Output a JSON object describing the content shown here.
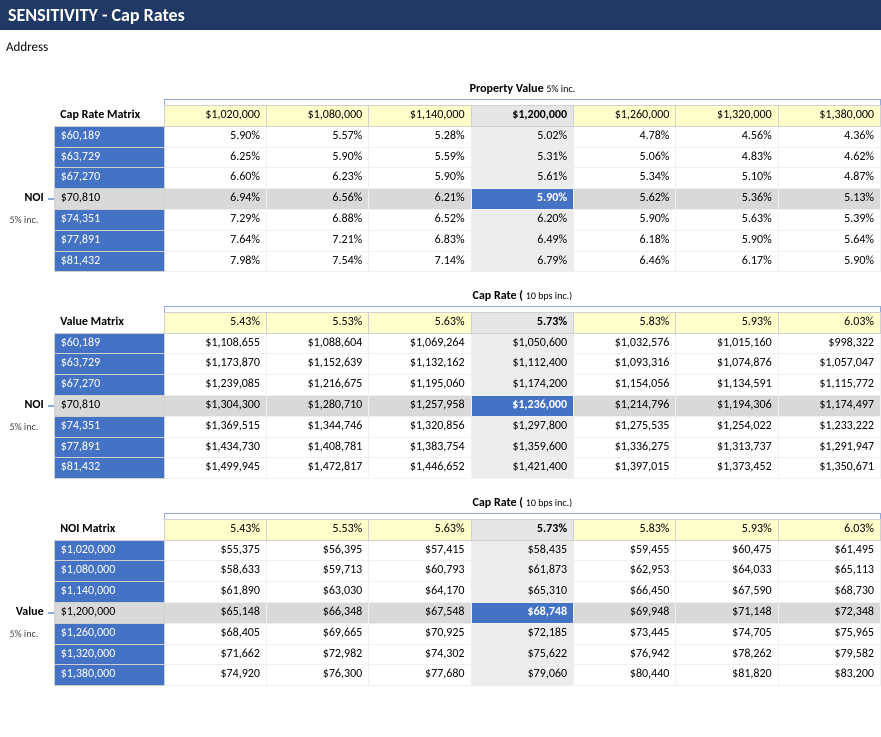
{
  "title": "SENSITIVITY - Cap Rates",
  "address_label": "Address",
  "colors": {
    "title_bg": "#1f3864",
    "row_head_bg": "#4472c4",
    "col_head_bg": "#ffffcc",
    "highlight_gray": "#d9d9d9",
    "highlight_col_gray": "#ececec",
    "cross_bg": "#4472c4",
    "bracket": "#8faadc"
  },
  "matrix1": {
    "section_title_bold": "Property Value",
    "section_title_note": "5% inc.",
    "matrix_label": "Cap Rate Matrix",
    "side_label": "NOI",
    "side_sub": "5% inc.",
    "col_headers": [
      "$1,020,000",
      "$1,080,000",
      "$1,140,000",
      "$1,200,000",
      "$1,260,000",
      "$1,320,000",
      "$1,380,000"
    ],
    "row_headers": [
      "$60,189",
      "$63,729",
      "$67,270",
      "$70,810",
      "$74,351",
      "$77,891",
      "$81,432"
    ],
    "center_col_index": 3,
    "center_row_index": 3,
    "cells": [
      [
        "5.90%",
        "5.57%",
        "5.28%",
        "5.02%",
        "4.78%",
        "4.56%",
        "4.36%"
      ],
      [
        "6.25%",
        "5.90%",
        "5.59%",
        "5.31%",
        "5.06%",
        "4.83%",
        "4.62%"
      ],
      [
        "6.60%",
        "6.23%",
        "5.90%",
        "5.61%",
        "5.34%",
        "5.10%",
        "4.87%"
      ],
      [
        "6.94%",
        "6.56%",
        "6.21%",
        "5.90%",
        "5.62%",
        "5.36%",
        "5.13%"
      ],
      [
        "7.29%",
        "6.88%",
        "6.52%",
        "6.20%",
        "5.90%",
        "5.63%",
        "5.39%"
      ],
      [
        "7.64%",
        "7.21%",
        "6.83%",
        "6.49%",
        "6.18%",
        "5.90%",
        "5.64%"
      ],
      [
        "7.98%",
        "7.54%",
        "7.14%",
        "6.79%",
        "6.46%",
        "6.17%",
        "5.90%"
      ]
    ]
  },
  "matrix2": {
    "section_title_bold": "Cap Rate (",
    "section_title_note": "10 bps inc.)",
    "matrix_label": "Value Matrix",
    "side_label": "NOI",
    "side_sub": "5% inc.",
    "col_headers": [
      "5.43%",
      "5.53%",
      "5.63%",
      "5.73%",
      "5.83%",
      "5.93%",
      "6.03%"
    ],
    "row_headers": [
      "$60,189",
      "$63,729",
      "$67,270",
      "$70,810",
      "$74,351",
      "$77,891",
      "$81,432"
    ],
    "center_col_index": 3,
    "center_row_index": 3,
    "cells": [
      [
        "$1,108,655",
        "$1,088,604",
        "$1,069,264",
        "$1,050,600",
        "$1,032,576",
        "$1,015,160",
        "$998,322"
      ],
      [
        "$1,173,870",
        "$1,152,639",
        "$1,132,162",
        "$1,112,400",
        "$1,093,316",
        "$1,074,876",
        "$1,057,047"
      ],
      [
        "$1,239,085",
        "$1,216,675",
        "$1,195,060",
        "$1,174,200",
        "$1,154,056",
        "$1,134,591",
        "$1,115,772"
      ],
      [
        "$1,304,300",
        "$1,280,710",
        "$1,257,958",
        "$1,236,000",
        "$1,214,796",
        "$1,194,306",
        "$1,174,497"
      ],
      [
        "$1,369,515",
        "$1,344,746",
        "$1,320,856",
        "$1,297,800",
        "$1,275,535",
        "$1,254,022",
        "$1,233,222"
      ],
      [
        "$1,434,730",
        "$1,408,781",
        "$1,383,754",
        "$1,359,600",
        "$1,336,275",
        "$1,313,737",
        "$1,291,947"
      ],
      [
        "$1,499,945",
        "$1,472,817",
        "$1,446,652",
        "$1,421,400",
        "$1,397,015",
        "$1,373,452",
        "$1,350,671"
      ]
    ]
  },
  "matrix3": {
    "section_title_bold": "Cap Rate (",
    "section_title_note": "10 bps inc.)",
    "matrix_label": "NOI Matrix",
    "side_label": "Value",
    "side_sub": "5% inc.",
    "col_headers": [
      "5.43%",
      "5.53%",
      "5.63%",
      "5.73%",
      "5.83%",
      "5.93%",
      "6.03%"
    ],
    "row_headers": [
      "$1,020,000",
      "$1,080,000",
      "$1,140,000",
      "$1,200,000",
      "$1,260,000",
      "$1,320,000",
      "$1,380,000"
    ],
    "center_col_index": 3,
    "center_row_index": 3,
    "cells": [
      [
        "$55,375",
        "$56,395",
        "$57,415",
        "$58,435",
        "$59,455",
        "$60,475",
        "$61,495"
      ],
      [
        "$58,633",
        "$59,713",
        "$60,793",
        "$61,873",
        "$62,953",
        "$64,033",
        "$65,113"
      ],
      [
        "$61,890",
        "$63,030",
        "$64,170",
        "$65,310",
        "$66,450",
        "$67,590",
        "$68,730"
      ],
      [
        "$65,148",
        "$66,348",
        "$67,548",
        "$68,748",
        "$69,948",
        "$71,148",
        "$72,348"
      ],
      [
        "$68,405",
        "$69,665",
        "$70,925",
        "$72,185",
        "$73,445",
        "$74,705",
        "$75,965"
      ],
      [
        "$71,662",
        "$72,982",
        "$74,302",
        "$75,622",
        "$76,942",
        "$78,262",
        "$79,582"
      ],
      [
        "$74,920",
        "$76,300",
        "$77,680",
        "$79,060",
        "$80,440",
        "$81,820",
        "$83,200"
      ]
    ]
  }
}
